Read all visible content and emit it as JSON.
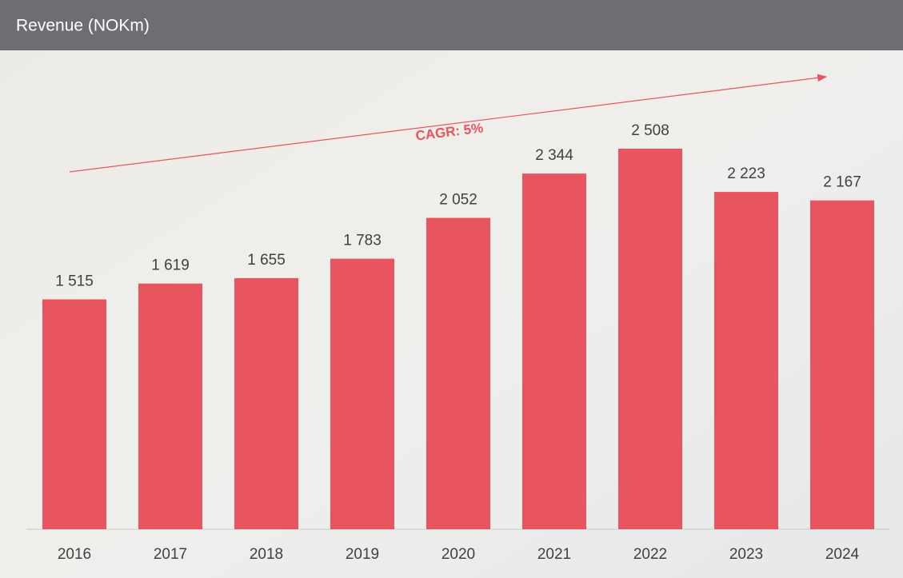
{
  "chart_data": {
    "type": "bar",
    "title": "Revenue (NOKm)",
    "categories": [
      "2016",
      "2017",
      "2018",
      "2019",
      "2020",
      "2021",
      "2022",
      "2023",
      "2024"
    ],
    "values": [
      1515,
      1619,
      1655,
      1783,
      2052,
      2344,
      2508,
      2223,
      2167
    ],
    "value_labels": [
      "1 515",
      "1 619",
      "1 655",
      "1 783",
      "2 052",
      "2 344",
      "2 508",
      "2 223",
      "2 167"
    ],
    "color": "#e8555e",
    "annotation": "CAGR: 5%"
  }
}
